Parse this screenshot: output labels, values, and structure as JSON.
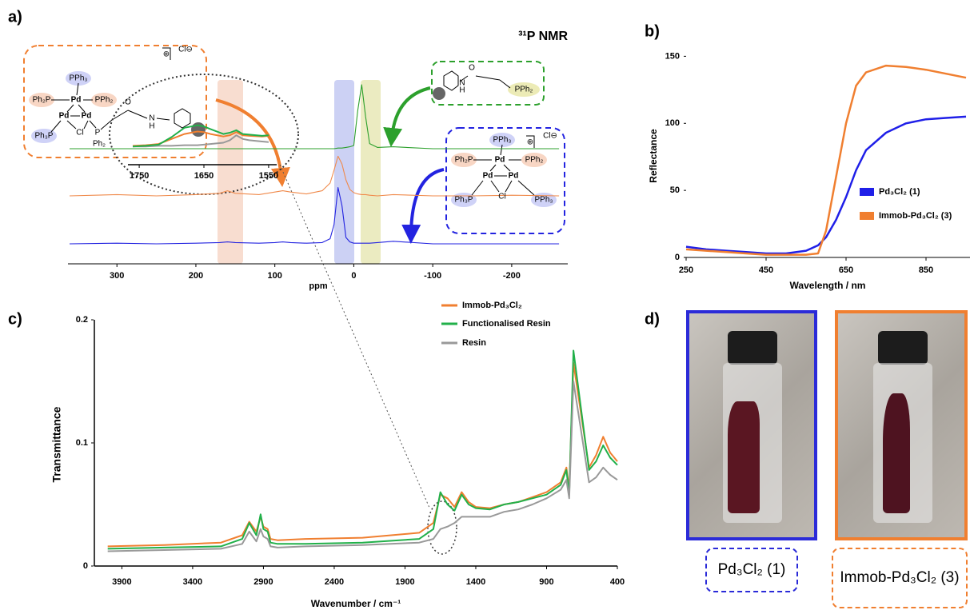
{
  "panel_labels": [
    "a)",
    "b)",
    "c)",
    "d)"
  ],
  "chart_data": [
    {
      "type": "line",
      "title": "³¹P NMR",
      "x_label": "ppm",
      "xlim": [
        362,
        -271
      ],
      "xticks": [
        300,
        200,
        100,
        0,
        -100,
        -200
      ],
      "ylim": [
        0,
        100
      ],
      "x": [
        360,
        300,
        250,
        200,
        170,
        160,
        150,
        120,
        100,
        90,
        80,
        60,
        40,
        30,
        25,
        20,
        15,
        10,
        5,
        0,
        -5,
        -10,
        -15,
        -20,
        -30,
        -50,
        -100,
        -150,
        -200,
        -260
      ],
      "series": [
        {
          "color": "#2ca02c",
          "values": [
            0,
            0,
            0,
            0,
            0,
            0,
            0,
            0,
            0,
            0,
            0,
            0,
            0,
            0,
            0,
            1,
            1,
            2,
            3,
            5,
            60,
            100,
            50,
            8,
            2,
            3,
            0,
            0,
            0,
            0
          ]
        },
        {
          "color": "#f08a4b",
          "values": [
            0,
            2,
            0,
            2,
            4,
            8,
            4,
            2,
            6,
            8,
            6,
            3,
            8,
            20,
            40,
            62,
            50,
            25,
            10,
            5,
            3,
            2,
            2,
            1,
            0,
            2,
            0,
            0,
            1,
            0
          ]
        },
        {
          "color": "#2323e0",
          "values": [
            0,
            1,
            0,
            1,
            2,
            3,
            2,
            1,
            2,
            3,
            2,
            1,
            2,
            8,
            30,
            88,
            60,
            10,
            3,
            1,
            1,
            1,
            1,
            1,
            2,
            4,
            0,
            0,
            0,
            0
          ]
        }
      ]
    },
    {
      "type": "line",
      "y_label": "Reflectance",
      "x_label": "Wavelength / nm",
      "xlim": [
        250,
        960
      ],
      "xticks": [
        250,
        450,
        650,
        850
      ],
      "ylim": [
        0,
        155
      ],
      "yticks": [
        0,
        50,
        100,
        150
      ],
      "x": [
        250,
        300,
        350,
        400,
        450,
        500,
        550,
        580,
        600,
        625,
        650,
        675,
        700,
        750,
        800,
        850,
        900,
        950
      ],
      "series": [
        {
          "name": "Pd₃Cl₂ (1)",
          "color": "#1f1fe8",
          "values": [
            8,
            6,
            5,
            4,
            3,
            3,
            5,
            9,
            15,
            28,
            45,
            65,
            80,
            93,
            100,
            103,
            104,
            105
          ]
        },
        {
          "name": "Immob-Pd₃Cl₂ (3)",
          "color": "#f07f30",
          "values": [
            6,
            5,
            4,
            3,
            2,
            2,
            2,
            3,
            20,
            60,
            100,
            128,
            138,
            143,
            142,
            140,
            137,
            134
          ]
        }
      ]
    },
    {
      "type": "line",
      "y_label": "Transmittance",
      "x_label": "Wavenumber / cm⁻¹",
      "xlim": [
        4100,
        400
      ],
      "xticks": [
        3900,
        3400,
        2900,
        2400,
        1900,
        1400,
        900,
        400
      ],
      "ylim": [
        0,
        0.2
      ],
      "yticks": [
        0,
        0.1,
        0.2
      ],
      "x": [
        4000,
        3600,
        3200,
        3050,
        3000,
        2950,
        2920,
        2900,
        2870,
        2850,
        2800,
        2600,
        2200,
        1800,
        1700,
        1650,
        1600,
        1550,
        1500,
        1450,
        1400,
        1300,
        1200,
        1100,
        1000,
        900,
        800,
        760,
        740,
        710,
        600,
        550,
        500,
        450,
        400
      ],
      "series": [
        {
          "name": "Immob-Pd₃Cl₂",
          "color": "#f07f30",
          "values": [
            0.016,
            0.017,
            0.019,
            0.025,
            0.036,
            0.028,
            0.04,
            0.032,
            0.03,
            0.022,
            0.021,
            0.022,
            0.023,
            0.027,
            0.035,
            0.058,
            0.055,
            0.048,
            0.06,
            0.052,
            0.048,
            0.047,
            0.05,
            0.052,
            0.056,
            0.06,
            0.068,
            0.08,
            0.062,
            0.165,
            0.08,
            0.09,
            0.105,
            0.092,
            0.085
          ]
        },
        {
          "name": "Functionalised Resin",
          "color": "#22b04a",
          "values": [
            0.014,
            0.015,
            0.016,
            0.022,
            0.035,
            0.025,
            0.042,
            0.03,
            0.028,
            0.019,
            0.018,
            0.018,
            0.019,
            0.022,
            0.03,
            0.06,
            0.05,
            0.045,
            0.058,
            0.05,
            0.047,
            0.046,
            0.05,
            0.052,
            0.055,
            0.058,
            0.066,
            0.078,
            0.058,
            0.175,
            0.078,
            0.085,
            0.098,
            0.088,
            0.082
          ]
        },
        {
          "name": "Resin",
          "color": "#999999",
          "values": [
            0.012,
            0.013,
            0.014,
            0.018,
            0.028,
            0.02,
            0.03,
            0.024,
            0.022,
            0.016,
            0.015,
            0.016,
            0.017,
            0.019,
            0.022,
            0.03,
            0.032,
            0.035,
            0.04,
            0.04,
            0.04,
            0.04,
            0.044,
            0.046,
            0.05,
            0.055,
            0.062,
            0.07,
            0.055,
            0.15,
            0.068,
            0.072,
            0.08,
            0.074,
            0.07
          ]
        }
      ]
    },
    {
      "type": "line",
      "xlim": [
        1760,
        1540
      ],
      "xticks": [
        1750,
        1650,
        1550
      ],
      "ylim": [
        0.02,
        0.07
      ],
      "x": [
        1760,
        1740,
        1720,
        1700,
        1680,
        1660,
        1650,
        1640,
        1620,
        1610,
        1600,
        1590,
        1580,
        1560,
        1550
      ],
      "series": [
        {
          "color": "#999999",
          "values": [
            0.03,
            0.03,
            0.031,
            0.031,
            0.032,
            0.032,
            0.033,
            0.034,
            0.036,
            0.04,
            0.048,
            0.042,
            0.04,
            0.038,
            0.037
          ]
        },
        {
          "color": "#f07f30",
          "values": [
            0.031,
            0.032,
            0.034,
            0.042,
            0.05,
            0.054,
            0.053,
            0.05,
            0.046,
            0.048,
            0.053,
            0.048,
            0.047,
            0.046,
            0.047
          ]
        },
        {
          "color": "#22b04a",
          "values": [
            0.03,
            0.031,
            0.033,
            0.045,
            0.06,
            0.064,
            0.062,
            0.058,
            0.05,
            0.052,
            0.056,
            0.05,
            0.049,
            0.047,
            0.048
          ]
        }
      ]
    }
  ],
  "structures": {
    "immobilised": [
      "PPh₃",
      "Ph₂P",
      "Pd",
      "PPh₂",
      "Pd",
      "Pd",
      "Ph₃P",
      "Cl",
      "P",
      "Ph₂",
      "O",
      "N",
      "H"
    ],
    "immobilised_charge": [
      "⊕",
      "Cl⊖"
    ],
    "ligand": [
      "O",
      "N",
      "H",
      "PPh₂"
    ],
    "complex": [
      "PPh₃",
      "Ph₂P",
      "Pd",
      "PPh₂",
      "Pd",
      "Pd",
      "Ph₃P",
      "Cl",
      "PPh₃"
    ],
    "complex_charge": [
      "⊕",
      "Cl⊖"
    ]
  },
  "photo_captions": [
    "Pd₃Cl₂ (1)",
    "Immob-Pd₃Cl₂ (3)"
  ]
}
